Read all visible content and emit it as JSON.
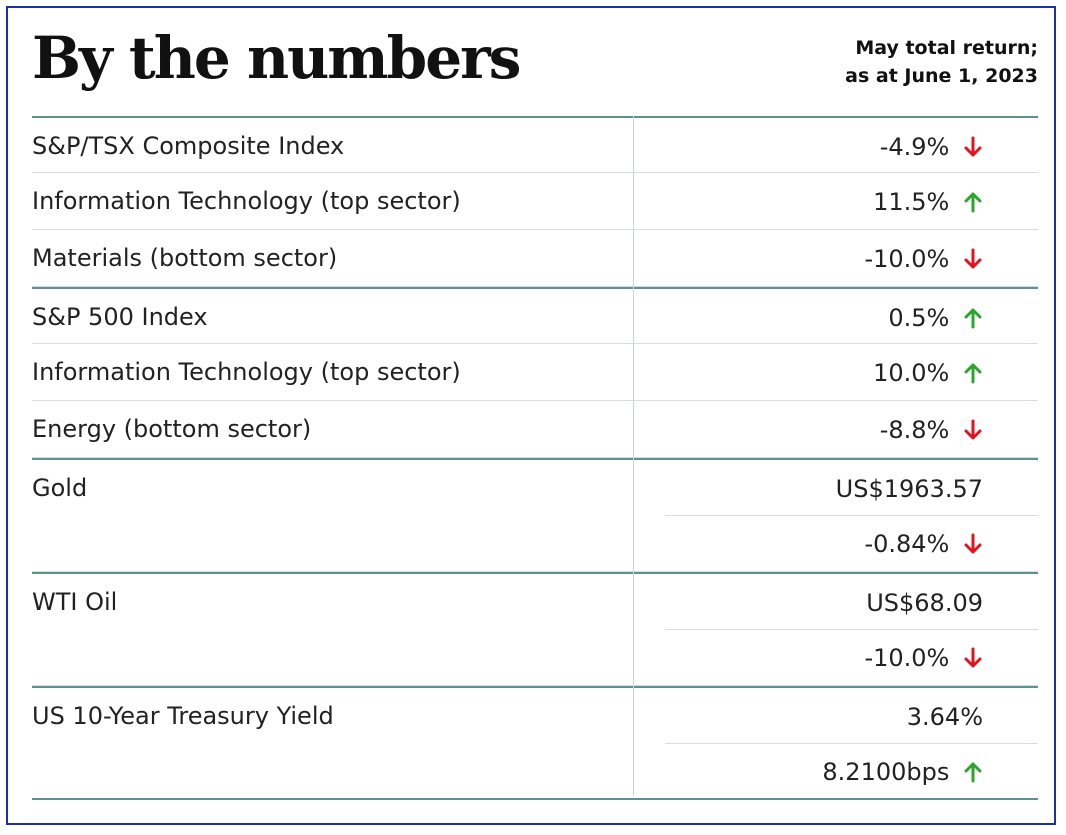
{
  "header": {
    "title": "By the numbers",
    "subtitle_line1": "May total return;",
    "subtitle_line2": "as at June 1, 2023"
  },
  "colors": {
    "up": "#2aa52e",
    "down": "#e0141d",
    "rule": "#5e9094"
  },
  "rows": [
    {
      "label": "S&P/TSX Composite Index",
      "value": "-4.9%",
      "dir": "down"
    },
    {
      "label": "Information Technology (top sector)",
      "value": "11.5%",
      "dir": "up"
    },
    {
      "label": "Materials (bottom sector)",
      "value": "-10.0%",
      "dir": "down"
    },
    {
      "label": "S&P 500 Index",
      "value": "0.5%",
      "dir": "up"
    },
    {
      "label": "Information Technology (top sector)",
      "value": "10.0%",
      "dir": "up"
    },
    {
      "label": "Energy (bottom sector)",
      "value": "-8.8%",
      "dir": "down"
    },
    {
      "label": "Gold",
      "value": "US$1963.57",
      "dir": "none"
    },
    {
      "label": "",
      "value": "-0.84%",
      "dir": "down"
    },
    {
      "label": "WTI Oil",
      "value": "US$68.09",
      "dir": "none"
    },
    {
      "label": "",
      "value": "-10.0%",
      "dir": "down"
    },
    {
      "label": "US 10-Year Treasury Yield",
      "value": "3.64%",
      "dir": "none"
    },
    {
      "label": "",
      "value": "8.2100bps",
      "dir": "up"
    }
  ]
}
